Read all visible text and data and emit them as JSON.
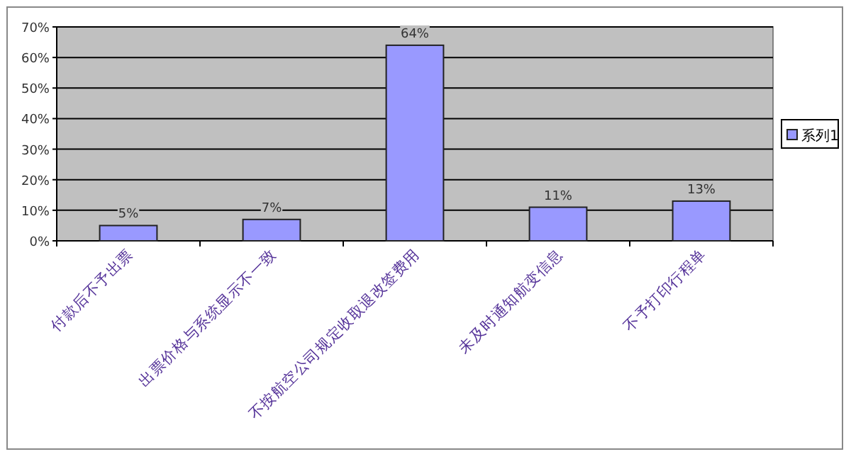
{
  "chart_data": {
    "type": "bar",
    "categories": [
      "付款后不予出票",
      "出票价格与系统显示不一致",
      "不按航空公司规定收取退改签费用",
      "未及时通知航变信息",
      "不予打印行程单"
    ],
    "series": [
      {
        "name": "系列1",
        "color": "#9999ff",
        "values": [
          5,
          7,
          64,
          11,
          13
        ],
        "value_labels": [
          "5%",
          "7%",
          "64%",
          "11%",
          "13%"
        ]
      }
    ],
    "ylim": [
      0,
      70
    ],
    "yticks": [
      {
        "value": 0,
        "label": "0%"
      },
      {
        "value": 10,
        "label": "10%"
      },
      {
        "value": 20,
        "label": "20%"
      },
      {
        "value": 30,
        "label": "30%"
      },
      {
        "value": 40,
        "label": "40%"
      },
      {
        "value": 50,
        "label": "50%"
      },
      {
        "value": 60,
        "label": "60%"
      },
      {
        "value": 70,
        "label": "70%"
      }
    ],
    "grid": "y",
    "legend": "right"
  }
}
